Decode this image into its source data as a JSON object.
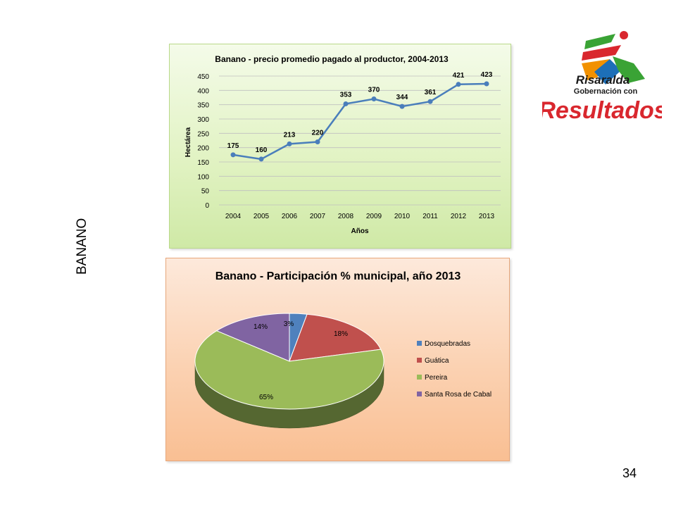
{
  "slide": {
    "side_title": "BANANO",
    "page_number": "34"
  },
  "logo": {
    "line1": "Risaralda",
    "line2": "Gobernación con",
    "line3": "Resultados",
    "colors": {
      "red": "#d9272e",
      "green": "#3aa335",
      "blue": "#1d6fb8",
      "orange": "#f29100",
      "dark": "#1a1a1a"
    }
  },
  "chart_data": [
    {
      "type": "line",
      "title": "Banano - precio promedio pagado al productor, 2004-2013",
      "xlabel": "Años",
      "ylabel": "Hectárea",
      "x": [
        "2004",
        "2005",
        "2006",
        "2007",
        "2008",
        "2009",
        "2010",
        "2011",
        "2012",
        "2013"
      ],
      "series": [
        {
          "values": [
            175,
            160,
            213,
            220,
            353,
            370,
            344,
            361,
            421,
            423
          ],
          "color": "#4a7ebb"
        }
      ],
      "ylim": [
        0,
        450
      ],
      "yticks": [
        0,
        50,
        100,
        150,
        200,
        250,
        300,
        350,
        400,
        450
      ],
      "grid": true,
      "data_labels": true
    },
    {
      "type": "pie",
      "title": "Banano - Participación % municipal, año 2013",
      "slices": [
        {
          "name": "Dosquebradas",
          "value": 3,
          "label": "3%",
          "color": "#4f81bd"
        },
        {
          "name": "Guática",
          "value": 18,
          "label": "18%",
          "color": "#c0504d"
        },
        {
          "name": "Pereira",
          "value": 65,
          "label": "65%",
          "color": "#9bbb59"
        },
        {
          "name": "Santa Rosa de Cabal",
          "value": 14,
          "label": "14%",
          "color": "#8064a2"
        }
      ],
      "legend_position": "right",
      "style": "3d"
    }
  ]
}
